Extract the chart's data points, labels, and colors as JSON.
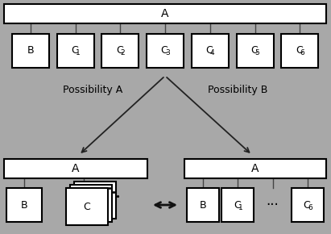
{
  "bg_color": "#a8a8a8",
  "box_color": "#ffffff",
  "box_edge": "#000000",
  "top_A_label": "A",
  "children_labels": [
    "B",
    "C",
    "C",
    "C",
    "C",
    "C",
    "C"
  ],
  "children_subs": [
    "",
    "1",
    "2",
    "3",
    "4",
    "5",
    "6"
  ],
  "possibility_a": "Possibility A",
  "possibility_b": "Possibility B",
  "left_A": "A",
  "right_A": "A",
  "right_children_subs": [
    "",
    "1",
    "",
    "6"
  ],
  "right_children_main": [
    "B",
    "C",
    "...",
    "C"
  ]
}
